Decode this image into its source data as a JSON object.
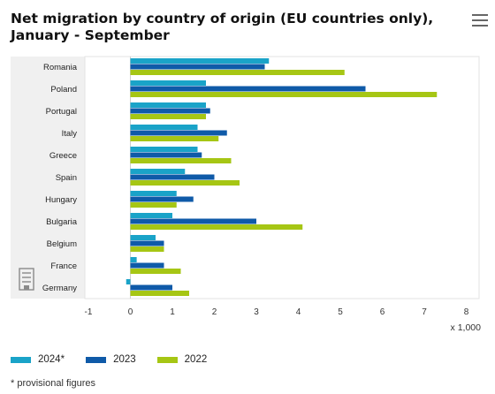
{
  "title": "Net migration by country of origin (EU countries only), January - September",
  "menu_icon": "hamburger-menu-icon",
  "building_icon": "building-icon",
  "footnote": "* provisional figures",
  "chart_data": {
    "type": "bar",
    "orientation": "horizontal",
    "title": "Net migration by country of origin (EU countries only), January - September",
    "categories": [
      "Romania",
      "Poland",
      "Portugal",
      "Italy",
      "Greece",
      "Spain",
      "Hungary",
      "Bulgaria",
      "Belgium",
      "France",
      "Germany"
    ],
    "series": [
      {
        "name": "2024*",
        "color": "#1aa3c8",
        "values": [
          3.3,
          1.8,
          1.8,
          1.6,
          1.6,
          1.3,
          1.1,
          1.0,
          0.6,
          0.15,
          -0.1
        ]
      },
      {
        "name": "2023",
        "color": "#0f5aa8",
        "values": [
          3.2,
          5.6,
          1.9,
          2.3,
          1.7,
          2.0,
          1.5,
          3.0,
          0.8,
          0.8,
          1.0
        ]
      },
      {
        "name": "2022",
        "color": "#a6c614",
        "values": [
          5.1,
          7.3,
          1.8,
          2.1,
          2.4,
          2.6,
          1.1,
          4.1,
          0.8,
          1.2,
          1.4
        ]
      }
    ],
    "xlim": [
      -1,
      8
    ],
    "xticks": [
      "-1",
      "0",
      "1",
      "2",
      "3",
      "4",
      "5",
      "6",
      "7",
      "8"
    ],
    "x_unit": "x 1,000",
    "grid": false,
    "legend_position": "bottom-left"
  }
}
